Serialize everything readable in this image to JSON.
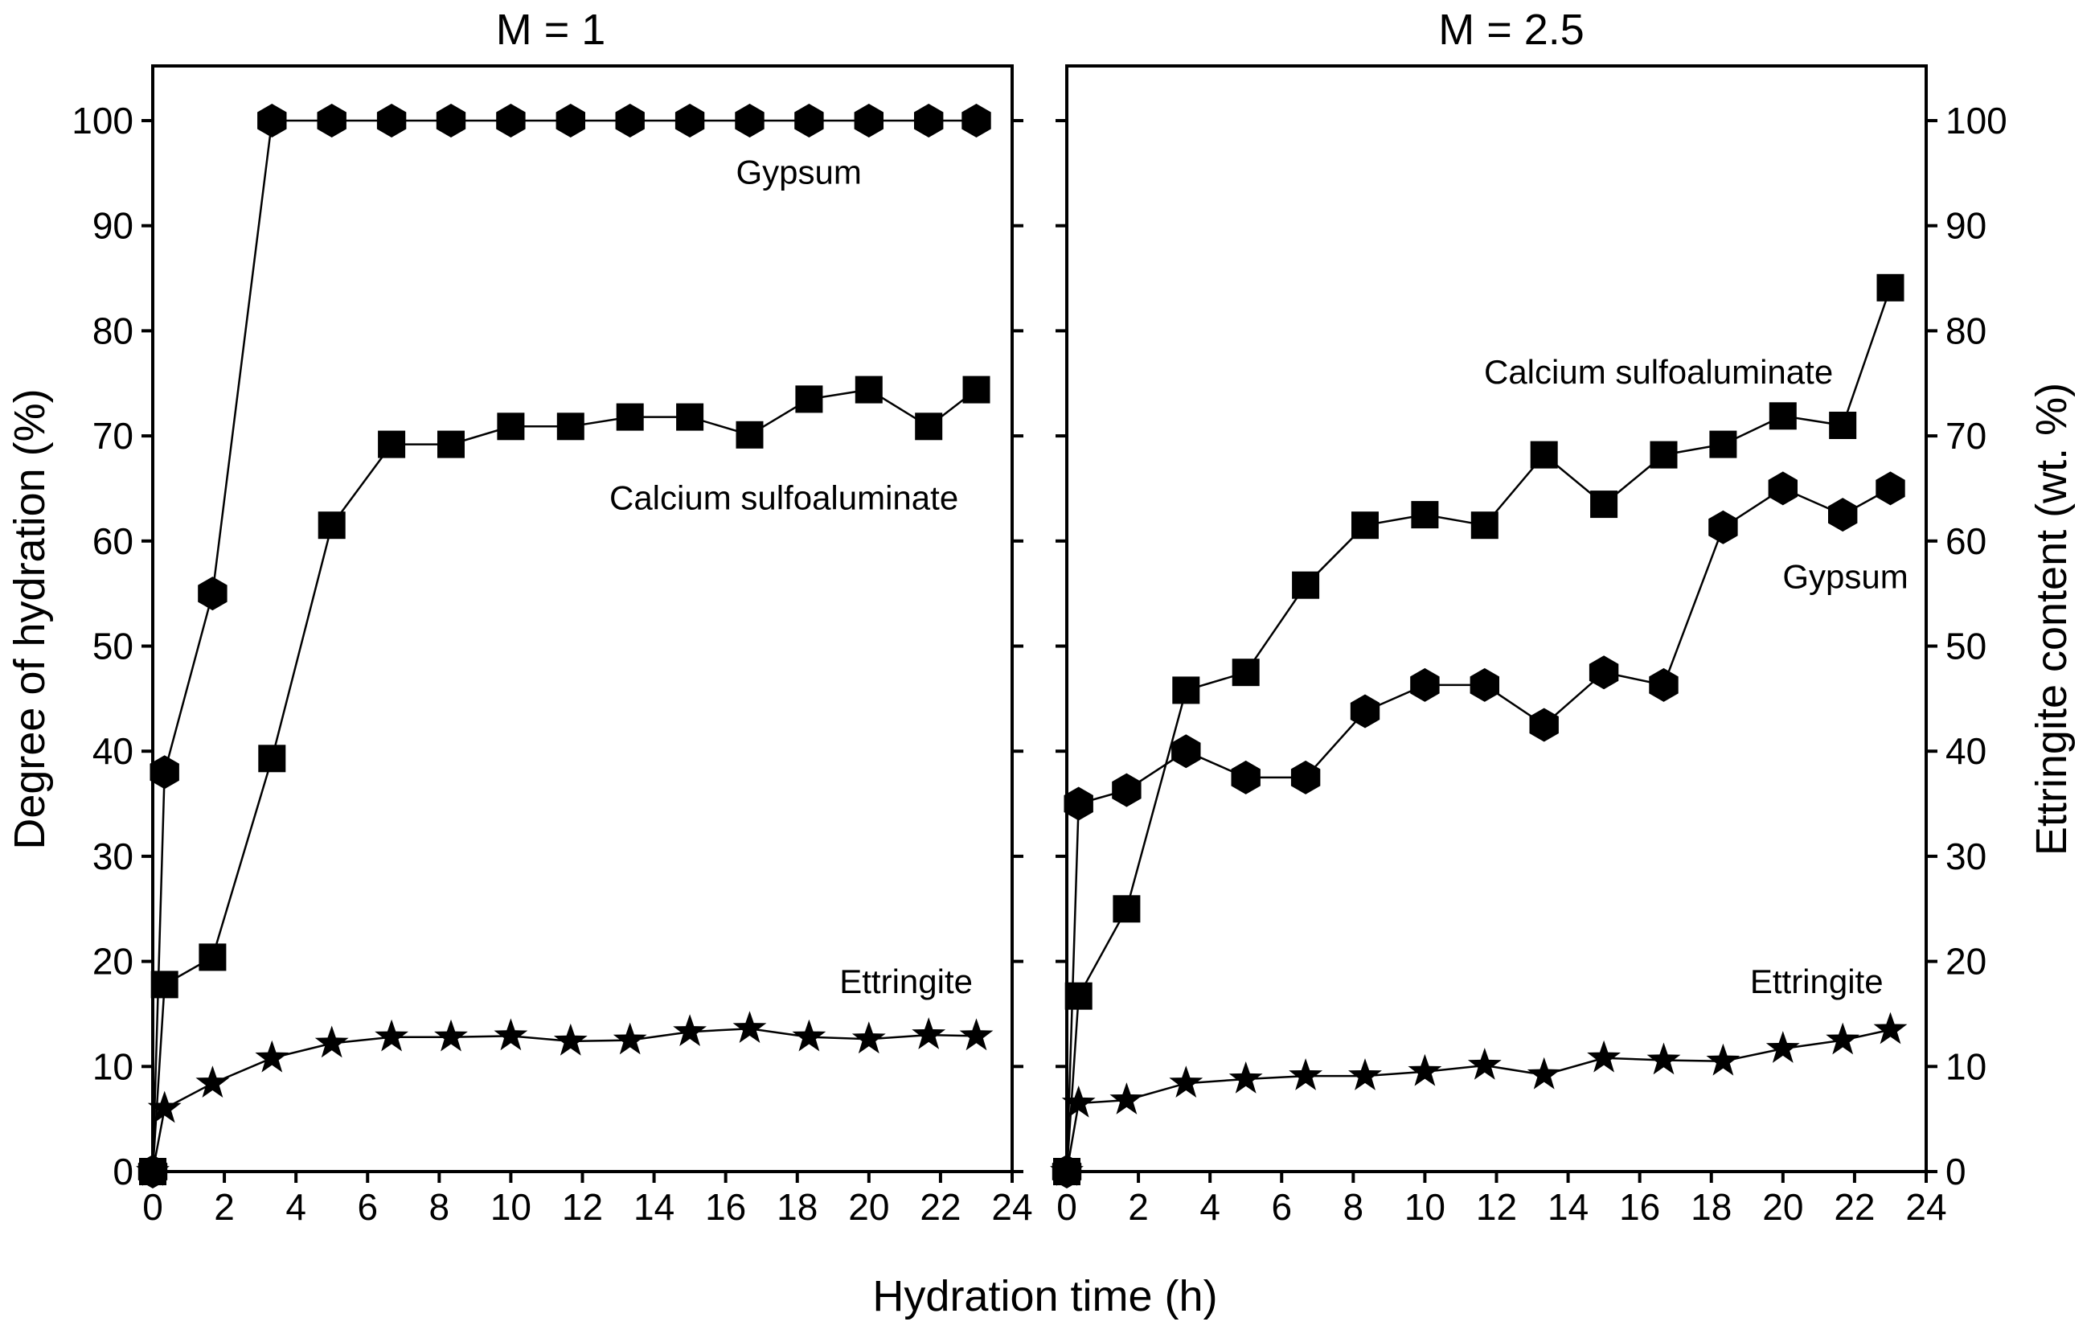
{
  "chart_data": [
    {
      "type": "scatter",
      "title": "M = 1",
      "xlabel": "Hydration time (h)",
      "ylabel": "Degree of hydration (%)",
      "xlim": [
        0,
        24
      ],
      "ylim": [
        0,
        100
      ],
      "x_ticks": [
        0,
        2,
        4,
        6,
        8,
        10,
        12,
        14,
        16,
        18,
        20,
        22,
        24
      ],
      "y_ticks": [
        0,
        10,
        20,
        30,
        40,
        50,
        60,
        70,
        80,
        90,
        100
      ],
      "grid": false,
      "series": [
        {
          "name": "Gypsum",
          "marker": "hexagon",
          "x": [
            0,
            0.33,
            1.67,
            3.33,
            5,
            6.67,
            8.33,
            10,
            11.67,
            13.33,
            15,
            16.67,
            18.33,
            20,
            21.67,
            23
          ],
          "values": [
            0,
            38,
            55,
            100,
            100,
            100,
            100,
            100,
            100,
            100,
            100,
            100,
            100,
            100,
            100,
            100
          ],
          "label": "Gypsum",
          "label_x": 19.8,
          "label_y": 94
        },
        {
          "name": "Calcium sulfoaluminate",
          "marker": "square",
          "x": [
            0,
            0.33,
            1.67,
            3.33,
            5,
            6.67,
            8.33,
            10,
            11.67,
            13.33,
            15,
            16.67,
            18.33,
            20,
            21.67,
            23
          ],
          "values": [
            0,
            17.8,
            20.4,
            39.3,
            61.5,
            69.2,
            69.2,
            70.9,
            70.9,
            71.8,
            71.8,
            70.1,
            73.5,
            74.4,
            70.9,
            74.4
          ],
          "label": "Calcium sulfoaluminate",
          "label_x": 22.5,
          "label_y": 63
        },
        {
          "name": "Ettringite",
          "marker": "star",
          "x": [
            0,
            0.33,
            1.67,
            3.33,
            5,
            6.67,
            8.33,
            10,
            11.67,
            13.33,
            15,
            16.67,
            18.33,
            20,
            21.67,
            23
          ],
          "values": [
            0,
            6,
            8.4,
            10.8,
            12.2,
            12.8,
            12.8,
            12.9,
            12.4,
            12.5,
            13.3,
            13.6,
            12.8,
            12.6,
            13,
            12.9
          ],
          "label": "Ettringite",
          "label_x": 22.9,
          "label_y": 17
        }
      ]
    },
    {
      "type": "scatter",
      "title": "M = 2.5",
      "xlabel": "Hydration time (h)",
      "ylabel": "Ettringite content (wt. %)",
      "xlim": [
        0,
        24
      ],
      "ylim": [
        0,
        100
      ],
      "x_ticks": [
        0,
        2,
        4,
        6,
        8,
        10,
        12,
        14,
        16,
        18,
        20,
        22,
        24
      ],
      "y_ticks": [
        0,
        10,
        20,
        30,
        40,
        50,
        60,
        70,
        80,
        90,
        100
      ],
      "grid": false,
      "series": [
        {
          "name": "Calcium sulfoaluminate",
          "marker": "square",
          "x": [
            0,
            0.33,
            1.67,
            3.33,
            5,
            6.67,
            8.33,
            10,
            11.67,
            13.33,
            15,
            16.67,
            18.33,
            20,
            21.67,
            23
          ],
          "values": [
            0,
            16.7,
            25,
            45.8,
            47.5,
            55.8,
            61.5,
            62.5,
            61.5,
            68.2,
            63.5,
            68.2,
            69.2,
            71.9,
            71,
            84.1
          ],
          "label": "Calcium sulfoaluminate",
          "label_x": 21.4,
          "label_y": 75
        },
        {
          "name": "Gypsum",
          "marker": "hexagon",
          "x": [
            0,
            0.33,
            1.67,
            3.33,
            5,
            6.67,
            8.33,
            10,
            11.67,
            13.33,
            15,
            16.67,
            18.33,
            20,
            21.67,
            23
          ],
          "values": [
            0,
            35,
            36.3,
            40,
            37.5,
            37.5,
            43.8,
            46.3,
            46.3,
            42.5,
            47.5,
            46.3,
            61.3,
            65,
            62.5,
            65
          ],
          "label": "Gypsum",
          "label_x": 23.5,
          "label_y": 55.5
        },
        {
          "name": "Ettringite",
          "marker": "star",
          "x": [
            0,
            0.33,
            1.67,
            3.33,
            5,
            6.67,
            8.33,
            10,
            11.67,
            13.33,
            15,
            16.67,
            18.33,
            20,
            21.67,
            23
          ],
          "values": [
            0,
            6.5,
            6.8,
            8.4,
            8.8,
            9.1,
            9.1,
            9.5,
            10.1,
            9.2,
            10.8,
            10.6,
            10.5,
            11.7,
            12.5,
            13.5
          ],
          "label": "Ettringite",
          "label_x": 22.8,
          "label_y": 17
        }
      ]
    }
  ]
}
